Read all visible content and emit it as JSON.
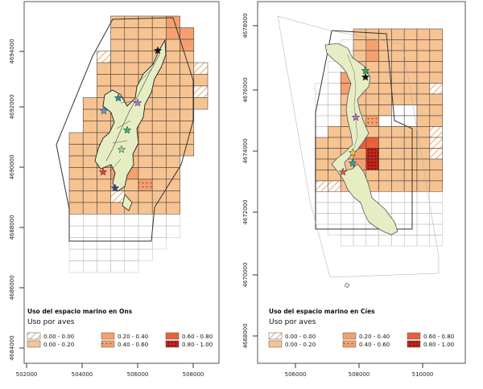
{
  "colors": {
    "c000": "#fbe3c2",
    "c020": "#f7c391",
    "c040": "#f4a16e",
    "c060": "#e9603a",
    "c080": "#c2241b",
    "land": "#e6edc2",
    "outline": "#333333",
    "grid_outline": "#b0b0b0"
  },
  "legend_classes": [
    "0.00 - 0.00",
    "0.00 - 0.20",
    "0.20 - 0.40",
    "0.40 - 0.60",
    "0.60 - 0.80",
    "0.80 - 1.00"
  ],
  "panels": [
    {
      "id": "ons",
      "title": "Uso del espacio marino en Ons",
      "subtitle": "Uso por aves",
      "x_ticks": [
        "502000",
        "504000",
        "506000",
        "508000"
      ],
      "y_ticks": [
        "4694000",
        "4692000",
        "4690000",
        "4688000",
        "4686000",
        "4684000"
      ],
      "markers": [
        {
          "name": "star-black",
          "color": "#111111"
        },
        {
          "name": "star-blue",
          "color": "#4aa3df"
        },
        {
          "name": "star-teal",
          "color": "#1f8aa3"
        },
        {
          "name": "star-magenta",
          "color": "#c06ad6"
        },
        {
          "name": "star-green",
          "color": "#3fae7a"
        },
        {
          "name": "star-green-light",
          "color": "#8fd19e"
        },
        {
          "name": "star-red",
          "color": "#d9453b"
        },
        {
          "name": "star-navy",
          "color": "#3340a8"
        }
      ]
    },
    {
      "id": "cies",
      "title": "Uso del espacio marino en Cíes",
      "subtitle": "Uso por aves",
      "x_ticks": [
        "506000",
        "508000",
        "510000"
      ],
      "y_ticks": [
        "4678000",
        "4676000",
        "4674000",
        "4672000",
        "4670000",
        "4668000"
      ],
      "markers": [
        {
          "name": "star-black",
          "color": "#111111"
        },
        {
          "name": "star-green",
          "color": "#2fa35c"
        },
        {
          "name": "star-magenta",
          "color": "#b56fd0"
        },
        {
          "name": "star-yellow",
          "color": "#d9cf46"
        },
        {
          "name": "star-teal",
          "color": "#1fa3a8"
        },
        {
          "name": "star-red",
          "color": "#e0583a"
        }
      ]
    }
  ]
}
